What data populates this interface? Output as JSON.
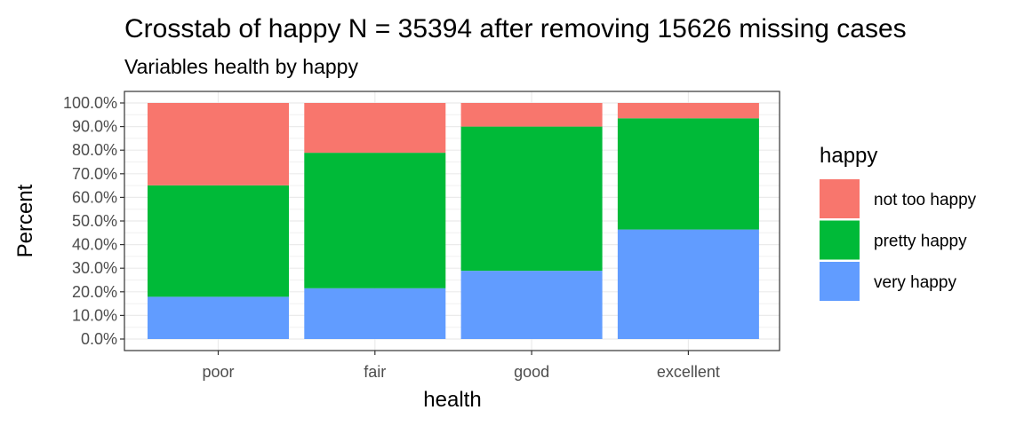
{
  "chart_data": {
    "type": "bar",
    "stacked": true,
    "title": "Crosstab of happy N = 35394 after removing 15626 missing cases",
    "subtitle": "Variables health by happy",
    "xlabel": "health",
    "ylabel": "Percent",
    "categories": [
      "poor",
      "fair",
      "good",
      "excellent"
    ],
    "ylim": [
      0,
      100
    ],
    "yticks": [
      0,
      10,
      20,
      30,
      40,
      50,
      60,
      70,
      80,
      90,
      100
    ],
    "ytick_labels": [
      "0.0%",
      "10.0%",
      "20.0%",
      "30.0%",
      "40.0%",
      "50.0%",
      "60.0%",
      "70.0%",
      "80.0%",
      "90.0%",
      "100.0%"
    ],
    "grid": true,
    "legend": {
      "title": "happy",
      "position": "right"
    },
    "series": [
      {
        "name": "very happy",
        "color": "#619CFF",
        "values": [
          17.9,
          21.5,
          28.9,
          46.4
        ]
      },
      {
        "name": "pretty happy",
        "color": "#00BA38",
        "values": [
          47.2,
          57.4,
          61.1,
          47.1
        ]
      },
      {
        "name": "not too happy",
        "color": "#F8766D",
        "values": [
          34.9,
          21.1,
          10.0,
          6.5
        ]
      }
    ],
    "legend_order": [
      "not too happy",
      "pretty happy",
      "very happy"
    ]
  }
}
